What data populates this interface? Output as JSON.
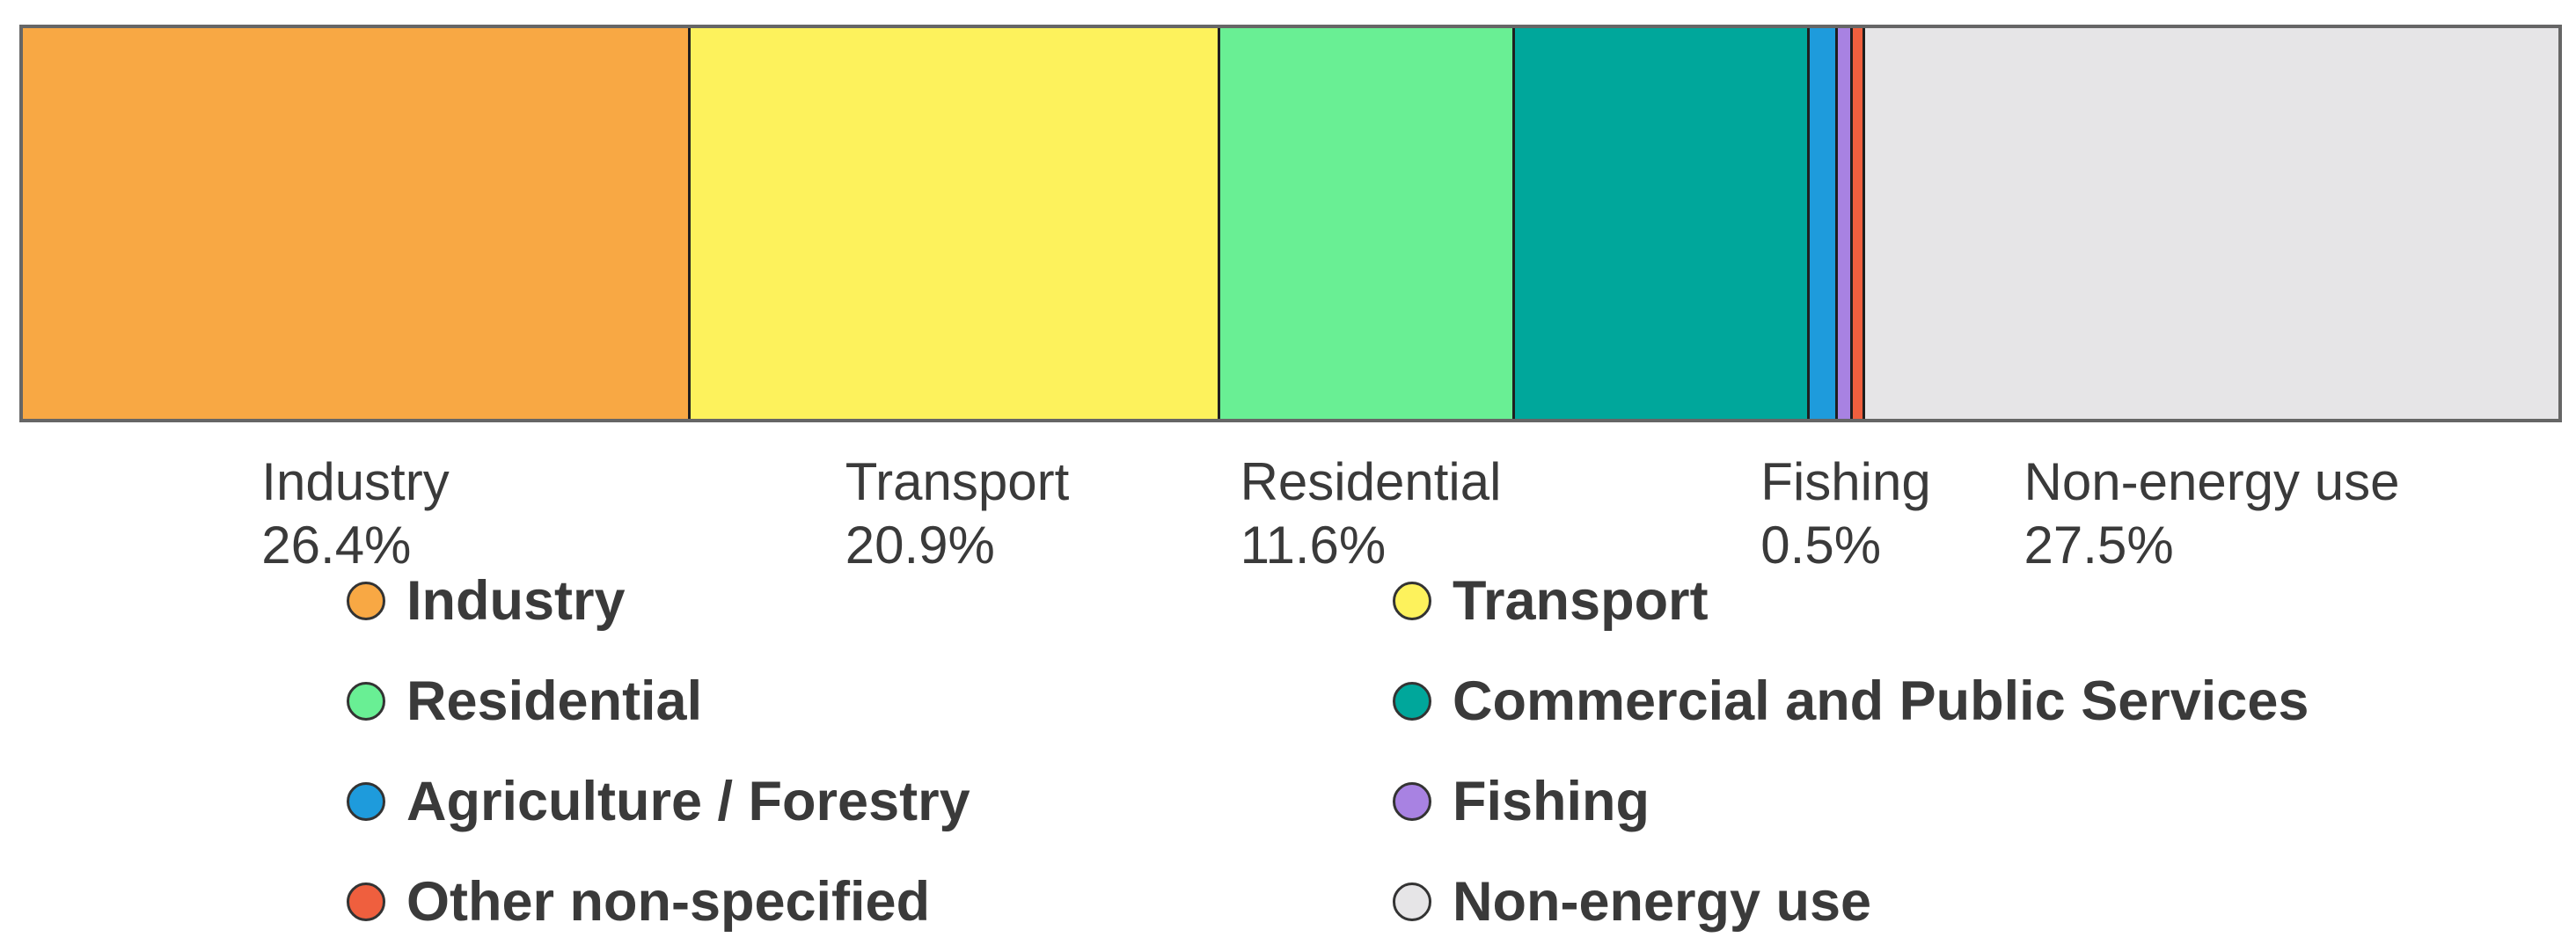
{
  "chart_data": {
    "type": "bar",
    "subtype": "stacked-horizontal-100pct",
    "title": "",
    "unit": "%",
    "grid": false,
    "segments": [
      {
        "label": "Industry",
        "percent": 26.4,
        "percent_label": "26.4%",
        "color": "#F8A844",
        "labeled_below": true
      },
      {
        "label": "Transport",
        "percent": 20.9,
        "percent_label": "20.9%",
        "color": "#FDF25C",
        "labeled_below": true
      },
      {
        "label": "Residential",
        "percent": 11.6,
        "percent_label": "11.6%",
        "color": "#69EF94",
        "labeled_below": true
      },
      {
        "label": "Commercial and Public Services",
        "percent": 11.6,
        "color": "#00A79B",
        "labeled_below": false
      },
      {
        "label": "Agriculture / Forestry",
        "percent": 1.0,
        "color": "#1E9BDC",
        "labeled_below": false
      },
      {
        "label": "Fishing",
        "percent": 0.5,
        "percent_label": "0.5%",
        "color": "#A882E2",
        "labeled_below": true
      },
      {
        "label": "Other non-specified",
        "percent": 0.4,
        "color": "#EF5F3E",
        "labeled_below": false
      },
      {
        "label": "Non-energy use",
        "percent": 27.5,
        "percent_label": "27.5%",
        "color": "#E6E5E7",
        "labeled_below": true
      }
    ],
    "legend": {
      "position": "bottom",
      "columns": [
        [
          "Industry",
          "Residential",
          "Agriculture / Forestry",
          "Other non-specified"
        ],
        [
          "Transport",
          "Commercial and Public Services",
          "Fishing",
          "Non-energy use"
        ]
      ]
    },
    "styles": {
      "text_color": "#3A3A3A",
      "bar_border_color": "#666666",
      "segment_divider_color": "#1F1F1F",
      "marker_border_color": "#333333"
    }
  }
}
